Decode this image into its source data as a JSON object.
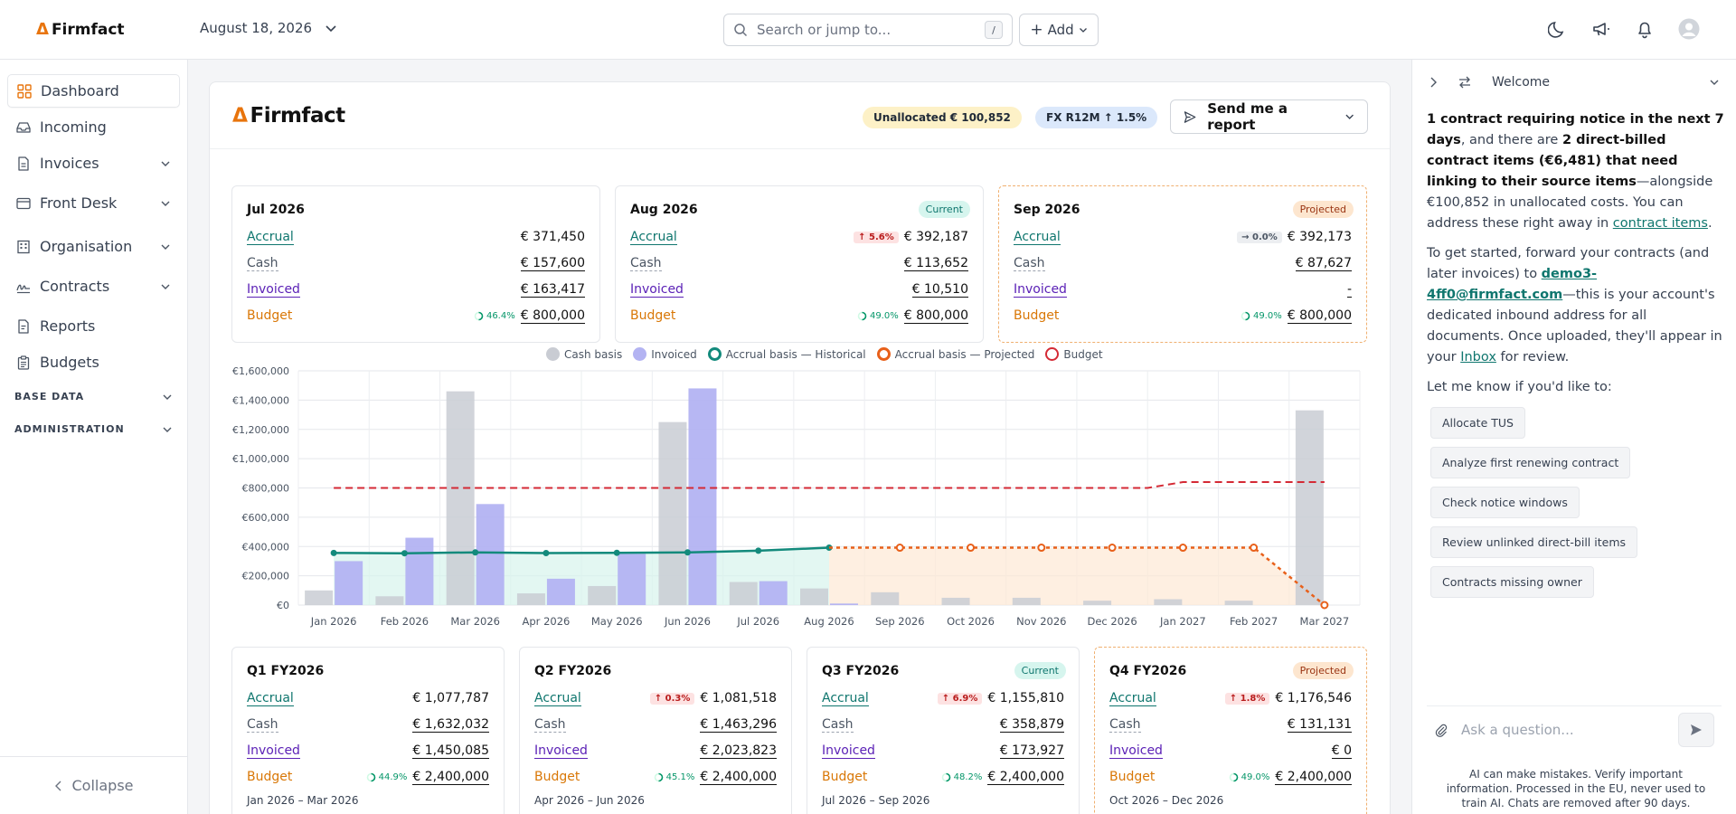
{
  "app": {
    "logo_text": "Firmfact",
    "date_selector": "August 18, 2026",
    "search_placeholder": "Search or jump to...",
    "search_shortcut": "/",
    "add_label": "Add"
  },
  "sidebar": {
    "items": [
      {
        "label": "Dashboard",
        "icon": "grid-icon"
      },
      {
        "label": "Incoming",
        "icon": "inbox-icon"
      },
      {
        "label": "Invoices",
        "icon": "document-icon"
      },
      {
        "label": "Front Desk",
        "icon": "window-icon"
      },
      {
        "label": "Organisation",
        "icon": "building-icon"
      },
      {
        "label": "Contracts",
        "icon": "signature-icon"
      },
      {
        "label": "Reports",
        "icon": "report-icon"
      },
      {
        "label": "Budgets",
        "icon": "clipboard-icon"
      }
    ],
    "sections": [
      "BASE DATA",
      "ADMINISTRATION"
    ],
    "collapse_label": "Collapse"
  },
  "header": {
    "logo_text": "Firmfact",
    "unallocated": "Unallocated € 100,852",
    "fx": "FX R12M ↑ 1.5%",
    "send_report": "Send me a report"
  },
  "labels": {
    "accrual": "Accrual",
    "cash": "Cash",
    "invoiced": "Invoiced",
    "budget": "Budget"
  },
  "months": [
    {
      "title": "Jul 2026",
      "badge": "",
      "accrual": "€ 371,450",
      "accrual_delta": "",
      "cash": "€ 157,600",
      "invoiced": "€ 163,417",
      "budget_pct": "46.4%",
      "budget": "€ 800,000"
    },
    {
      "title": "Aug 2026",
      "badge": "Current",
      "accrual": "€ 392,187",
      "accrual_delta": "↑ 5.6%",
      "cash": "€ 113,652",
      "invoiced": "€ 10,510",
      "budget_pct": "49.0%",
      "budget": "€ 800,000"
    },
    {
      "title": "Sep 2026",
      "badge": "Projected",
      "accrual": "€ 392,173",
      "accrual_delta": "→ 0.0%",
      "cash": "€ 87,627",
      "invoiced": "-",
      "budget_pct": "49.0%",
      "budget": "€ 800,000"
    }
  ],
  "quarters": [
    {
      "title": "Q1 FY2026",
      "badge": "",
      "accrual": "€ 1,077,787",
      "accrual_delta": "",
      "cash": "€ 1,632,032",
      "invoiced": "€ 1,450,085",
      "budget_pct": "44.9%",
      "budget": "€ 2,400,000",
      "range": "Jan 2026 – Mar 2026"
    },
    {
      "title": "Q2 FY2026",
      "badge": "",
      "accrual": "€ 1,081,518",
      "accrual_delta": "↑ 0.3%",
      "cash": "€ 1,463,296",
      "invoiced": "€ 2,023,823",
      "budget_pct": "45.1%",
      "budget": "€ 2,400,000",
      "range": "Apr 2026 – Jun 2026"
    },
    {
      "title": "Q3 FY2026",
      "badge": "Current",
      "accrual": "€ 1,155,810",
      "accrual_delta": "↑ 6.9%",
      "cash": "€ 358,879",
      "invoiced": "€ 173,927",
      "budget_pct": "48.2%",
      "budget": "€ 2,400,000",
      "range": "Jul 2026 – Sep 2026"
    },
    {
      "title": "Q4 FY2026",
      "badge": "Projected",
      "accrual": "€ 1,176,546",
      "accrual_delta": "↑ 1.8%",
      "cash": "€ 131,131",
      "invoiced": "€ 0",
      "budget_pct": "49.0%",
      "budget": "€ 2,400,000",
      "range": "Oct 2026 – Dec 2026"
    }
  ],
  "chart_data": {
    "type": "bar",
    "categories": [
      "Jan 2026",
      "Feb 2026",
      "Mar 2026",
      "Apr 2026",
      "May 2026",
      "Jun 2026",
      "Jul 2026",
      "Aug 2026",
      "Sep 2026",
      "Oct 2026",
      "Nov 2026",
      "Dec 2026",
      "Jan 2027",
      "Feb 2027",
      "Mar 2027"
    ],
    "y_ticks": [
      "€0",
      "€200,000",
      "€400,000",
      "€600,000",
      "€800,000",
      "€1,000,000",
      "€1,200,000",
      "€1,400,000",
      "€1,600,000"
    ],
    "ylim": [
      0,
      1600000
    ],
    "legend": [
      "Cash basis",
      "Invoiced",
      "Accrual basis — Historical",
      "Accrual basis — Projected",
      "Budget"
    ],
    "colors": {
      "cash": "#c9ccd3",
      "invoiced": "#b3b3f2",
      "accrual_hist": "#138a7c",
      "accrual_proj": "#e8601a",
      "budget": "#d42a35"
    },
    "series": [
      {
        "name": "Cash basis",
        "values": [
          100000,
          60000,
          1460000,
          80000,
          130000,
          1250000,
          157600,
          113652,
          87627,
          50000,
          50000,
          30000,
          40000,
          30000,
          1330000
        ]
      },
      {
        "name": "Invoiced",
        "values": [
          300000,
          460000,
          690000,
          180000,
          350000,
          1480000,
          163417,
          10510,
          0,
          0,
          0,
          0,
          0,
          0,
          0
        ]
      },
      {
        "name": "Accrual basis — Historical",
        "values": [
          356000,
          354000,
          360000,
          355000,
          357000,
          360000,
          371450,
          392187,
          null,
          null,
          null,
          null,
          null,
          null,
          null
        ]
      },
      {
        "name": "Accrual basis — Projected",
        "values": [
          null,
          null,
          null,
          null,
          null,
          null,
          null,
          392187,
          392173,
          392173,
          392173,
          392173,
          392173,
          392173,
          0
        ]
      },
      {
        "name": "Budget",
        "values": [
          800000,
          800000,
          800000,
          800000,
          800000,
          800000,
          800000,
          800000,
          800000,
          800000,
          800000,
          800000,
          840000,
          840000,
          840000
        ]
      }
    ]
  },
  "assistant": {
    "title": "Welcome",
    "p1_b1": "1 contract requiring notice in the next 7 days",
    "p1_t1": ", and there are ",
    "p1_b2": "2 direct-billed contract items (€6,481) that need linking to their source items",
    "p1_t2": "—alongside €100,852 in unallocated costs. You can address these right away in ",
    "p1_link": "contract items",
    "p1_t3": ".",
    "p2_t1": "To get started, forward your contracts (and later invoices) to ",
    "p2_email": "demo3-4ff0@firmfact.com",
    "p2_t2": "—this is your account's dedicated inbound address for all documents. Once uploaded, they'll appear in your ",
    "p2_link": "Inbox",
    "p2_t3": " for review.",
    "p3": "Let me know if you'd like to:",
    "chips": [
      "Allocate TUS",
      "Analyze first renewing contract",
      "Check notice windows",
      "Review unlinked direct-bill items",
      "Contracts missing owner"
    ],
    "ask_placeholder": "Ask a question...",
    "disclaimer": "AI can make mistakes. Verify important information. Processed in the EU, never used to train AI. Chats are removed after 90 days."
  }
}
